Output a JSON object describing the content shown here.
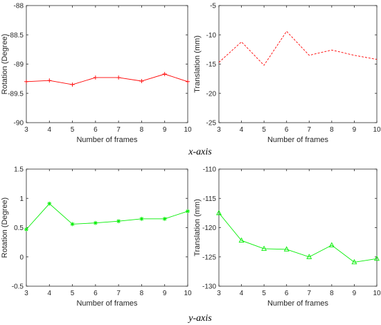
{
  "captions": {
    "top": "x-axis",
    "bottom": "y-axis"
  },
  "chart_data": [
    {
      "type": "line",
      "xlabel": "Number of frames",
      "ylabel": "Rotation (Degree)",
      "x": [
        3,
        4,
        5,
        6,
        7,
        8,
        9,
        10
      ],
      "xlim": [
        3,
        10
      ],
      "ylim": [
        -90,
        -88
      ],
      "xticks": [
        "3",
        "4",
        "5",
        "6",
        "7",
        "8",
        "9",
        "10"
      ],
      "yticks": [
        "-90",
        "-89.5",
        "-89",
        "-88.5",
        "-88"
      ],
      "series": [
        {
          "values": [
            -89.3,
            -89.28,
            -89.35,
            -89.23,
            -89.23,
            -89.29,
            -89.17,
            -89.3
          ],
          "color": "#ff0000",
          "line_style": "solid",
          "marker": "plus"
        }
      ]
    },
    {
      "type": "line",
      "xlabel": "Number of frames",
      "ylabel": "Translation (mm)",
      "x": [
        3,
        4,
        5,
        6,
        7,
        8,
        9,
        10
      ],
      "xlim": [
        3,
        10
      ],
      "ylim": [
        -25,
        -5
      ],
      "xticks": [
        "3",
        "4",
        "5",
        "6",
        "7",
        "8",
        "9",
        "10"
      ],
      "yticks": [
        "-25",
        "-20",
        "-15",
        "-10",
        "-5"
      ],
      "series": [
        {
          "values": [
            -14.7,
            -11.2,
            -15.2,
            -9.4,
            -13.5,
            -12.6,
            -13.5,
            -14.2
          ],
          "color": "#ff0000",
          "line_style": "dashed",
          "marker": "none"
        }
      ]
    },
    {
      "type": "line",
      "xlabel": "Number of frames",
      "ylabel": "Rotation (Degree)",
      "x": [
        3,
        4,
        5,
        6,
        7,
        8,
        9,
        10
      ],
      "xlim": [
        3,
        10
      ],
      "ylim": [
        -0.5,
        1.5
      ],
      "xticks": [
        "3",
        "4",
        "5",
        "6",
        "7",
        "8",
        "9",
        "10"
      ],
      "yticks": [
        "-0.5",
        "0",
        "0.5",
        "1",
        "1.5"
      ],
      "series": [
        {
          "values": [
            0.47,
            0.91,
            0.56,
            0.58,
            0.61,
            0.65,
            0.65,
            0.78
          ],
          "color": "#00ee00",
          "line_style": "solid",
          "marker": "asterisk"
        }
      ]
    },
    {
      "type": "line",
      "xlabel": "Number of frames",
      "ylabel": "Translation (mm)",
      "x": [
        3,
        4,
        5,
        6,
        7,
        8,
        9,
        10
      ],
      "xlim": [
        3,
        10
      ],
      "ylim": [
        -130,
        -110
      ],
      "xticks": [
        "3",
        "4",
        "5",
        "6",
        "7",
        "8",
        "9",
        "10"
      ],
      "yticks": [
        "-130",
        "-125",
        "-120",
        "-115",
        "-110"
      ],
      "series": [
        {
          "values": [
            -117.5,
            -122.2,
            -123.6,
            -123.7,
            -125.0,
            -123.0,
            -125.9,
            -125.3
          ],
          "color": "#00ee00",
          "line_style": "solid",
          "marker": "triangle"
        }
      ]
    }
  ]
}
